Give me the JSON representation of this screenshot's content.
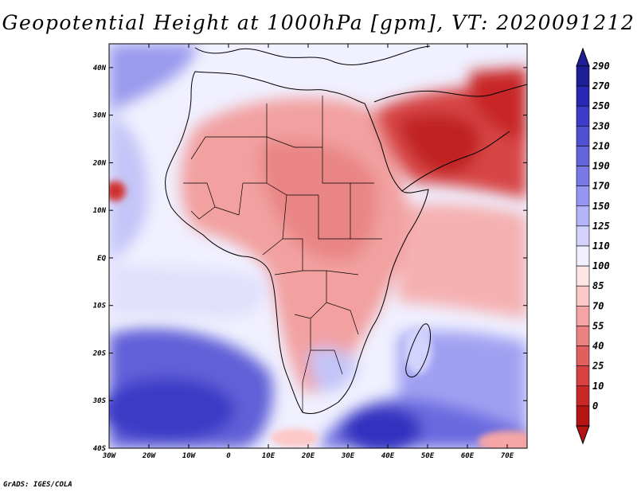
{
  "title": "Geopotential Height at 1000hPa [gpm], VT: 2020091212",
  "credit": "GrADS: IGES/COLA",
  "map": {
    "lat_ticks": [
      "40N",
      "30N",
      "20N",
      "10N",
      "EQ",
      "10S",
      "20S",
      "30S",
      "40S"
    ],
    "lon_ticks": [
      "30W",
      "20W",
      "10W",
      "0",
      "10E",
      "20E",
      "30E",
      "40E",
      "50E",
      "60E",
      "70E"
    ],
    "lat_range": [
      -40,
      45
    ],
    "lon_range": [
      -30,
      75
    ]
  },
  "colorbar": {
    "labels": [
      "290",
      "270",
      "250",
      "230",
      "210",
      "190",
      "170",
      "150",
      "125",
      "110",
      "100",
      "85",
      "70",
      "55",
      "40",
      "25",
      "10",
      "0"
    ],
    "colors": [
      "#1e1e96",
      "#2828b4",
      "#3c3cc8",
      "#5050d2",
      "#6464dc",
      "#7878e6",
      "#9696f0",
      "#b4b4f8",
      "#d2d2fc",
      "#f0f0ff",
      "#ffe6e6",
      "#fcc8c8",
      "#f5a5a5",
      "#eb8282",
      "#e15f5f",
      "#d74141",
      "#c82828",
      "#b41414"
    ]
  }
}
